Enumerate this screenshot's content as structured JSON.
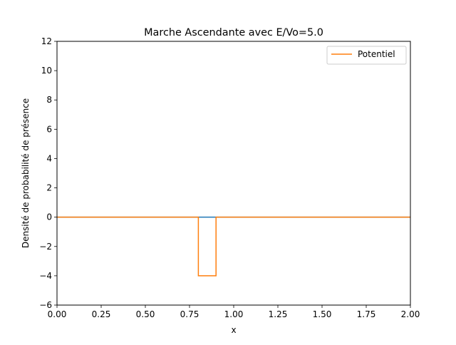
{
  "chart_data": {
    "type": "line",
    "title": "Marche Ascendante avec E/Vo=5.0",
    "xlabel": "x",
    "ylabel": "Densité de probabilité de présence",
    "xlim": [
      0,
      2
    ],
    "ylim": [
      -6,
      12
    ],
    "x_ticks": [
      0,
      0.25,
      0.5,
      0.75,
      1.0,
      1.25,
      1.5,
      1.75,
      2.0
    ],
    "x_tick_labels": [
      "0.00",
      "0.25",
      "0.50",
      "0.75",
      "1.00",
      "1.25",
      "1.50",
      "1.75",
      "2.00"
    ],
    "y_ticks": [
      -6,
      -4,
      -2,
      0,
      2,
      4,
      6,
      8,
      10,
      12
    ],
    "y_tick_labels": [
      "−6",
      "−4",
      "−2",
      "0",
      "2",
      "4",
      "6",
      "8",
      "10",
      "12"
    ],
    "grid": false,
    "legend_position": "top-right",
    "series": [
      {
        "color": "#1f77b4",
        "x": [
          0,
          0.8,
          0.8,
          0.9,
          0.9,
          2.0
        ],
        "y": [
          0,
          0,
          0,
          0,
          0,
          0
        ]
      },
      {
        "name": "Potentiel",
        "color": "#ff7f0e",
        "x": [
          0,
          0.8,
          0.8,
          0.9,
          0.9,
          2.0
        ],
        "y": [
          0,
          0,
          -4,
          -4,
          0,
          0
        ]
      }
    ]
  }
}
